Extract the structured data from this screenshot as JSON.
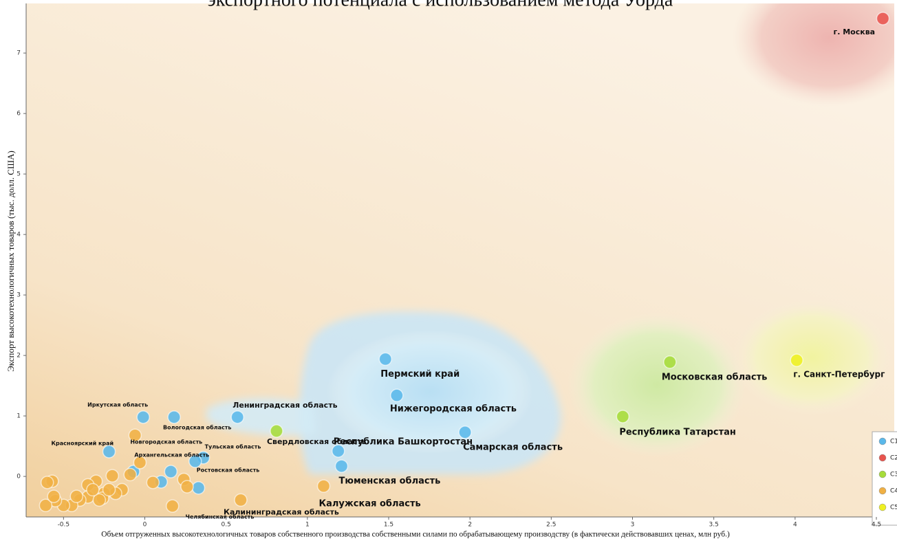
{
  "chart_data": {
    "type": "scatter",
    "title": "экспортного потенциала с использованием метода Уорда",
    "x_label": "Объем отгруженных высокотехнологичных товаров собственного производства собственными силами по обрабатывающему производству (в фактически действовавших ценах, млн руб.)",
    "y_label": "Экспорт высокотехнологичных товаров (тыс. долл. США)",
    "xlim": [
      -0.73,
      4.61
    ],
    "xticks": [
      -0.5,
      0,
      0.5,
      1,
      1.5,
      2,
      2.5,
      3,
      3.5,
      4,
      4.5
    ],
    "ylim": [
      -0.67,
      7.82
    ],
    "yticks": [
      0,
      1,
      2,
      3,
      4,
      5,
      6,
      7
    ],
    "legend": "lower right",
    "series": [
      {
        "name": "C1",
        "color": "#5ab8ea",
        "x": [
          1.48,
          1.55,
          0.57,
          1.97,
          1.19,
          1.21,
          -0.01,
          0.18,
          -0.22,
          0.36,
          0.31,
          0.33,
          0.16,
          0.1,
          -0.07
        ],
        "values": [
          1.94,
          1.34,
          0.98,
          0.73,
          0.42,
          0.17,
          0.98,
          0.98,
          0.41,
          0.31,
          0.25,
          -0.19,
          0.08,
          -0.09,
          0.08
        ],
        "labels": [
          "Пермский край",
          "Нижегородская область",
          "Ленинградская область",
          "Самарская область",
          "Республика Башкортостан",
          "Тюменская область",
          "Иркутская область",
          "Вологодская область",
          "Красноярский край",
          "Тульская область",
          "Ростовская область",
          "Челябинская область",
          null,
          null,
          null
        ]
      },
      {
        "name": "C2",
        "color": "#e8544e",
        "x": [
          4.54
        ],
        "values": [
          7.57
        ],
        "labels": [
          "г. Москва"
        ]
      },
      {
        "name": "C3",
        "color": "#a6dc3a",
        "x": [
          3.23,
          2.94,
          0.81
        ],
        "values": [
          1.89,
          0.99,
          0.75
        ],
        "labels": [
          "Московская область",
          "Республика Татарстан",
          "Свердловская область"
        ]
      },
      {
        "name": "C4",
        "color": "#f0b044",
        "x": [
          1.1,
          0.59,
          -0.06,
          -0.03,
          0.17,
          0.05,
          0.24,
          0.26,
          -0.09,
          -0.2,
          -0.14,
          -0.18,
          -0.25,
          -0.3,
          -0.35,
          -0.35,
          -0.4,
          -0.45,
          -0.5,
          -0.55,
          -0.57,
          -0.6,
          -0.61,
          -0.56,
          -0.42,
          -0.26,
          -0.22,
          -0.28,
          -0.32
        ],
        "values": [
          -0.16,
          -0.39,
          0.68,
          0.23,
          -0.49,
          -0.1,
          -0.05,
          -0.17,
          0.03,
          0.01,
          -0.22,
          -0.28,
          -0.28,
          -0.08,
          -0.14,
          -0.34,
          -0.39,
          -0.48,
          -0.48,
          -0.4,
          -0.08,
          -0.1,
          -0.48,
          -0.33,
          -0.33,
          -0.36,
          -0.22,
          -0.39,
          -0.22
        ],
        "labels": [
          "Калужская область",
          "Калининградская область",
          "Новгородская область",
          "Архангельская область",
          null,
          null,
          null,
          null,
          null,
          null,
          null,
          null,
          null,
          null,
          null,
          null,
          null,
          null,
          null,
          null,
          null,
          null,
          null,
          null,
          null,
          null,
          null,
          null,
          null
        ]
      },
      {
        "name": "C5",
        "color": "#eef022",
        "x": [
          4.01
        ],
        "values": [
          1.92
        ],
        "labels": [
          "г. Санкт-Петербург"
        ]
      }
    ]
  }
}
